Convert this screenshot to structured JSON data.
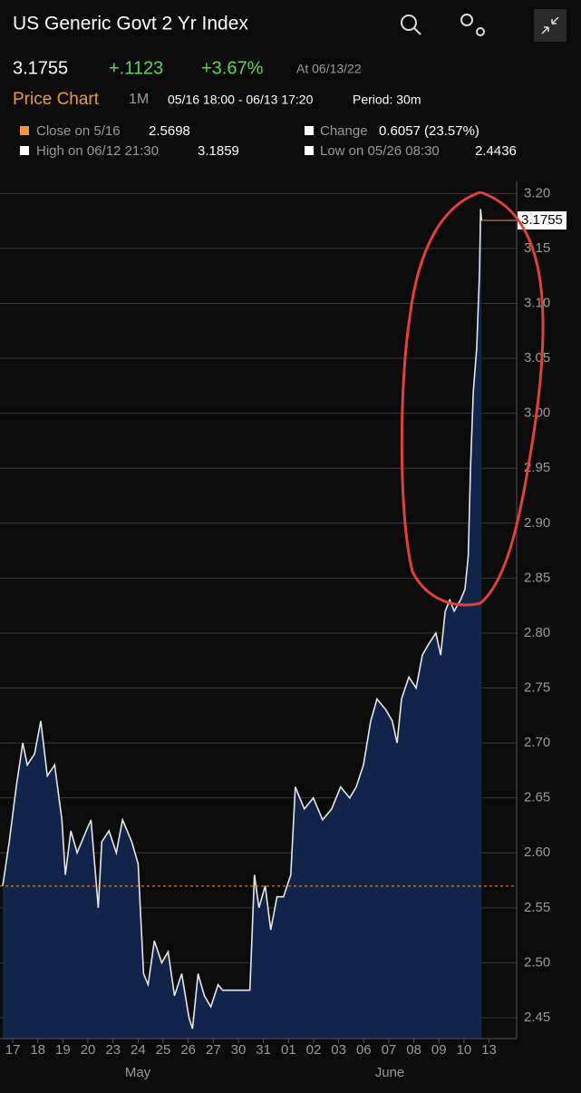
{
  "header": {
    "title": "US Generic Govt 2 Yr Index",
    "price": "3.1755",
    "change": "+.1123",
    "change_pct": "+3.67%",
    "as_of": "At 06/13/22"
  },
  "toolbar": {
    "label": "Price Chart",
    "range": "1M",
    "dates": "05/16 18:00 - 06/13 17:20",
    "period": "Period: 30m"
  },
  "stats": [
    {
      "label": "Close on 5/16",
      "value": "2.5698"
    },
    {
      "label": "Change",
      "value": "0.6057 (23.57%)"
    },
    {
      "label": "High on 06/12 21:30",
      "value": "3.1859"
    },
    {
      "label": "Low on 05/26 08:30",
      "value": "2.4436"
    }
  ],
  "chart_data": {
    "type": "area",
    "xlim": [
      -0.4,
      20.1
    ],
    "xticks": [
      {
        "value": 0,
        "label": "17"
      },
      {
        "value": 1,
        "label": "18"
      },
      {
        "value": 2,
        "label": "19"
      },
      {
        "value": 3,
        "label": "20"
      },
      {
        "value": 4,
        "label": "23"
      },
      {
        "value": 5,
        "label": "24"
      },
      {
        "value": 6,
        "label": "25"
      },
      {
        "value": 7,
        "label": "26"
      },
      {
        "value": 8,
        "label": "27"
      },
      {
        "value": 9,
        "label": "30"
      },
      {
        "value": 10,
        "label": "31"
      },
      {
        "value": 11,
        "label": "01"
      },
      {
        "value": 12,
        "label": "02"
      },
      {
        "value": 13,
        "label": "03"
      },
      {
        "value": 14,
        "label": "06"
      },
      {
        "value": 15,
        "label": "07"
      },
      {
        "value": 16,
        "label": "08"
      },
      {
        "value": 17,
        "label": "09"
      },
      {
        "value": 18,
        "label": "10"
      },
      {
        "value": 19,
        "label": "13"
      }
    ],
    "months": [
      "May",
      "June"
    ],
    "ylim": [
      2.431,
      3.211
    ],
    "yticks": [
      2.45,
      {
        "value": 2.5,
        "label": "2.50"
      },
      2.55,
      {
        "value": 2.6,
        "label": "2.60"
      },
      2.65,
      {
        "value": 2.7,
        "label": "2.70"
      },
      2.75,
      {
        "value": 2.8,
        "label": "2.80"
      },
      2.85,
      {
        "value": 2.9,
        "label": "2.90"
      },
      2.95,
      {
        "value": 3,
        "label": "3.00"
      },
      3.05,
      {
        "value": 3.1,
        "label": "3.10"
      },
      3.15,
      {
        "value": 3.2,
        "label": "3.20"
      }
    ],
    "grid": true,
    "reference_line": 2.5698,
    "last_value": 3.1755,
    "series": [
      {
        "color": "#e6e6e6",
        "fill": "#13244a",
        "x": [
          -0.4,
          -0.14,
          0.14,
          0.4,
          0.58,
          0.87,
          1.12,
          1.38,
          1.67,
          1.96,
          2.1,
          2.32,
          2.57,
          2.93,
          3.12,
          3.41,
          3.55,
          3.84,
          4.13,
          4.38,
          4.75,
          5.0,
          5.22,
          5.4,
          5.65,
          5.94,
          6.2,
          6.45,
          6.74,
          7.03,
          7.17,
          7.39,
          7.64,
          7.9,
          8.19,
          8.37,
          9.46,
          9.64,
          9.82,
          10.07,
          10.29,
          10.54,
          10.8,
          11.09,
          11.27,
          11.63,
          11.99,
          12.36,
          12.72,
          13.08,
          13.44,
          13.7,
          13.99,
          14.28,
          14.53,
          14.89,
          15.14,
          15.33,
          15.51,
          15.8,
          16.09,
          16.34,
          16.59,
          16.88,
          17.07,
          17.25,
          17.43,
          17.61,
          17.86,
          18.04,
          18.17,
          18.26,
          18.37,
          18.51,
          18.62,
          18.66,
          18.7
        ],
        "values": [
          2.57,
          2.61,
          2.66,
          2.7,
          2.68,
          2.69,
          2.72,
          2.67,
          2.68,
          2.63,
          2.58,
          2.62,
          2.6,
          2.62,
          2.63,
          2.55,
          2.61,
          2.62,
          2.6,
          2.63,
          2.61,
          2.59,
          2.49,
          2.48,
          2.52,
          2.5,
          2.51,
          2.47,
          2.49,
          2.45,
          2.44,
          2.49,
          2.47,
          2.46,
          2.48,
          2.475,
          2.475,
          2.58,
          2.55,
          2.57,
          2.53,
          2.56,
          2.56,
          2.58,
          2.66,
          2.64,
          2.65,
          2.63,
          2.64,
          2.66,
          2.65,
          2.66,
          2.68,
          2.72,
          2.74,
          2.73,
          2.72,
          2.7,
          2.74,
          2.76,
          2.75,
          2.78,
          2.79,
          2.8,
          2.78,
          2.82,
          2.83,
          2.82,
          2.83,
          2.84,
          2.87,
          2.95,
          3.02,
          3.06,
          3.13,
          3.1859,
          3.1755
        ]
      }
    ]
  }
}
